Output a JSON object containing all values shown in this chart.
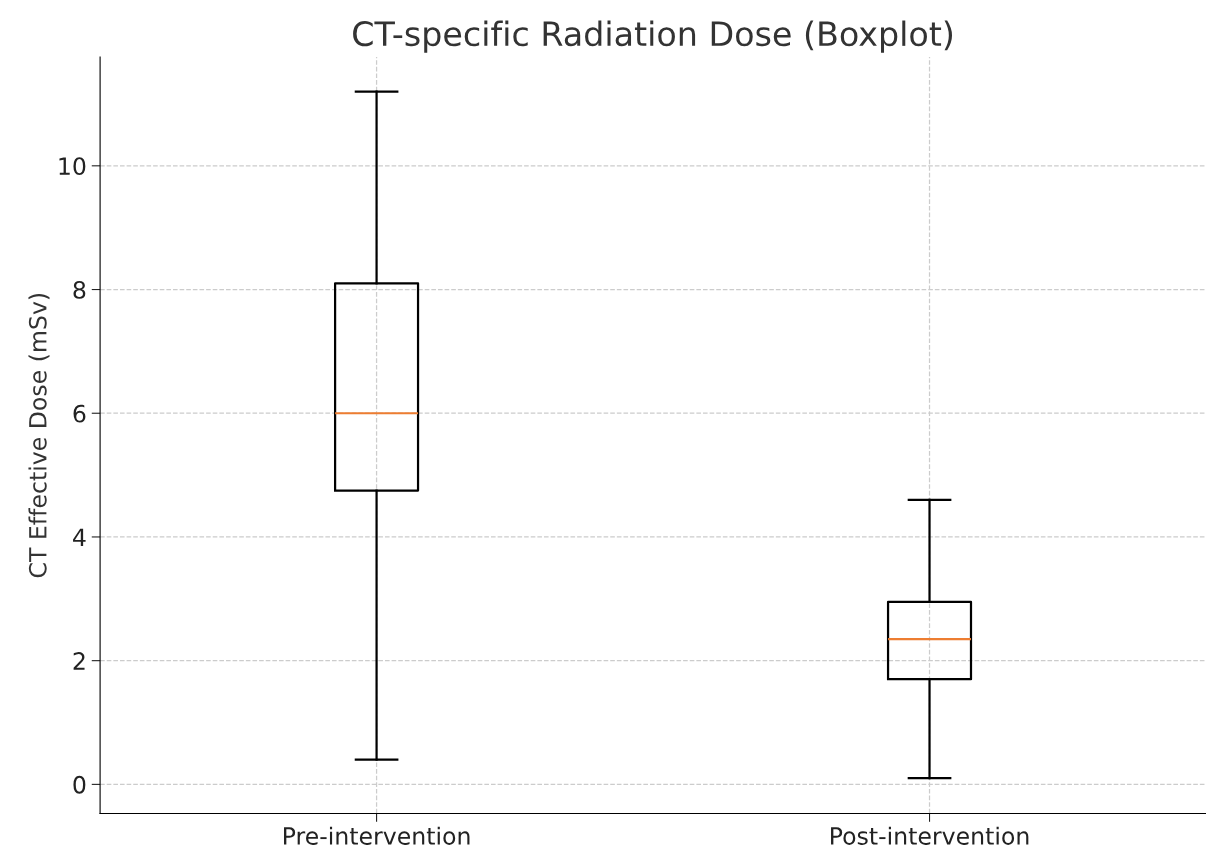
{
  "chart_data": {
    "type": "box",
    "title": "CT-specific Radiation Dose (Boxplot)",
    "ylabel": "CT Effective Dose (mSv)",
    "categories": [
      "Pre-intervention",
      "Post-intervention"
    ],
    "boxes": [
      {
        "low": 0.4,
        "q1": 4.75,
        "median": 6.0,
        "q3": 8.1,
        "high": 11.2
      },
      {
        "low": 0.1,
        "q1": 1.7,
        "median": 2.35,
        "q3": 2.95,
        "high": 4.6
      }
    ],
    "color": "#000000",
    "ylim": [
      -0.47,
      11.76
    ],
    "yticks": [
      0,
      2,
      4,
      6,
      8,
      10
    ],
    "grid": true,
    "line_style": "dashed"
  }
}
